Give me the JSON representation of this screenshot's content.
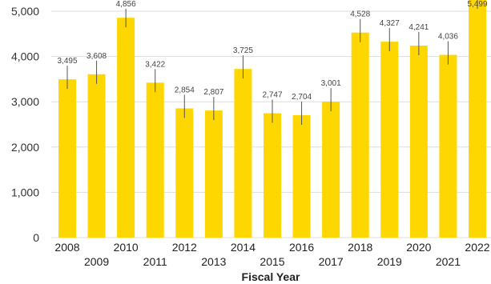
{
  "chart_data": {
    "type": "bar",
    "categories": [
      "2008",
      "2009",
      "2010",
      "2011",
      "2012",
      "2013",
      "2014",
      "2015",
      "2016",
      "2017",
      "2018",
      "2019",
      "2020",
      "2021",
      "2022"
    ],
    "values": [
      3495,
      3608,
      4856,
      3422,
      2854,
      2807,
      3725,
      2747,
      2704,
      3001,
      4528,
      4327,
      4241,
      4036,
      5499
    ],
    "data_labels": [
      "3,495",
      "3,608",
      "4,856",
      "3,422",
      "2,854",
      "2,807",
      "3,725",
      "2,747",
      "2,704",
      "3,001",
      "4,528",
      "4,327",
      "4,241",
      "4,036",
      "5,499"
    ],
    "y_ticks": [
      0,
      1000,
      2000,
      3000,
      4000,
      5000
    ],
    "y_tick_labels": [
      "0",
      "1,000",
      "2,000",
      "3,000",
      "4,000",
      "5,000"
    ],
    "title": "",
    "xlabel": "Fiscal Year",
    "ylabel": "",
    "ylim": [
      0,
      5000
    ],
    "grid": true,
    "legend": "none",
    "bar_color": "#FFD700"
  }
}
